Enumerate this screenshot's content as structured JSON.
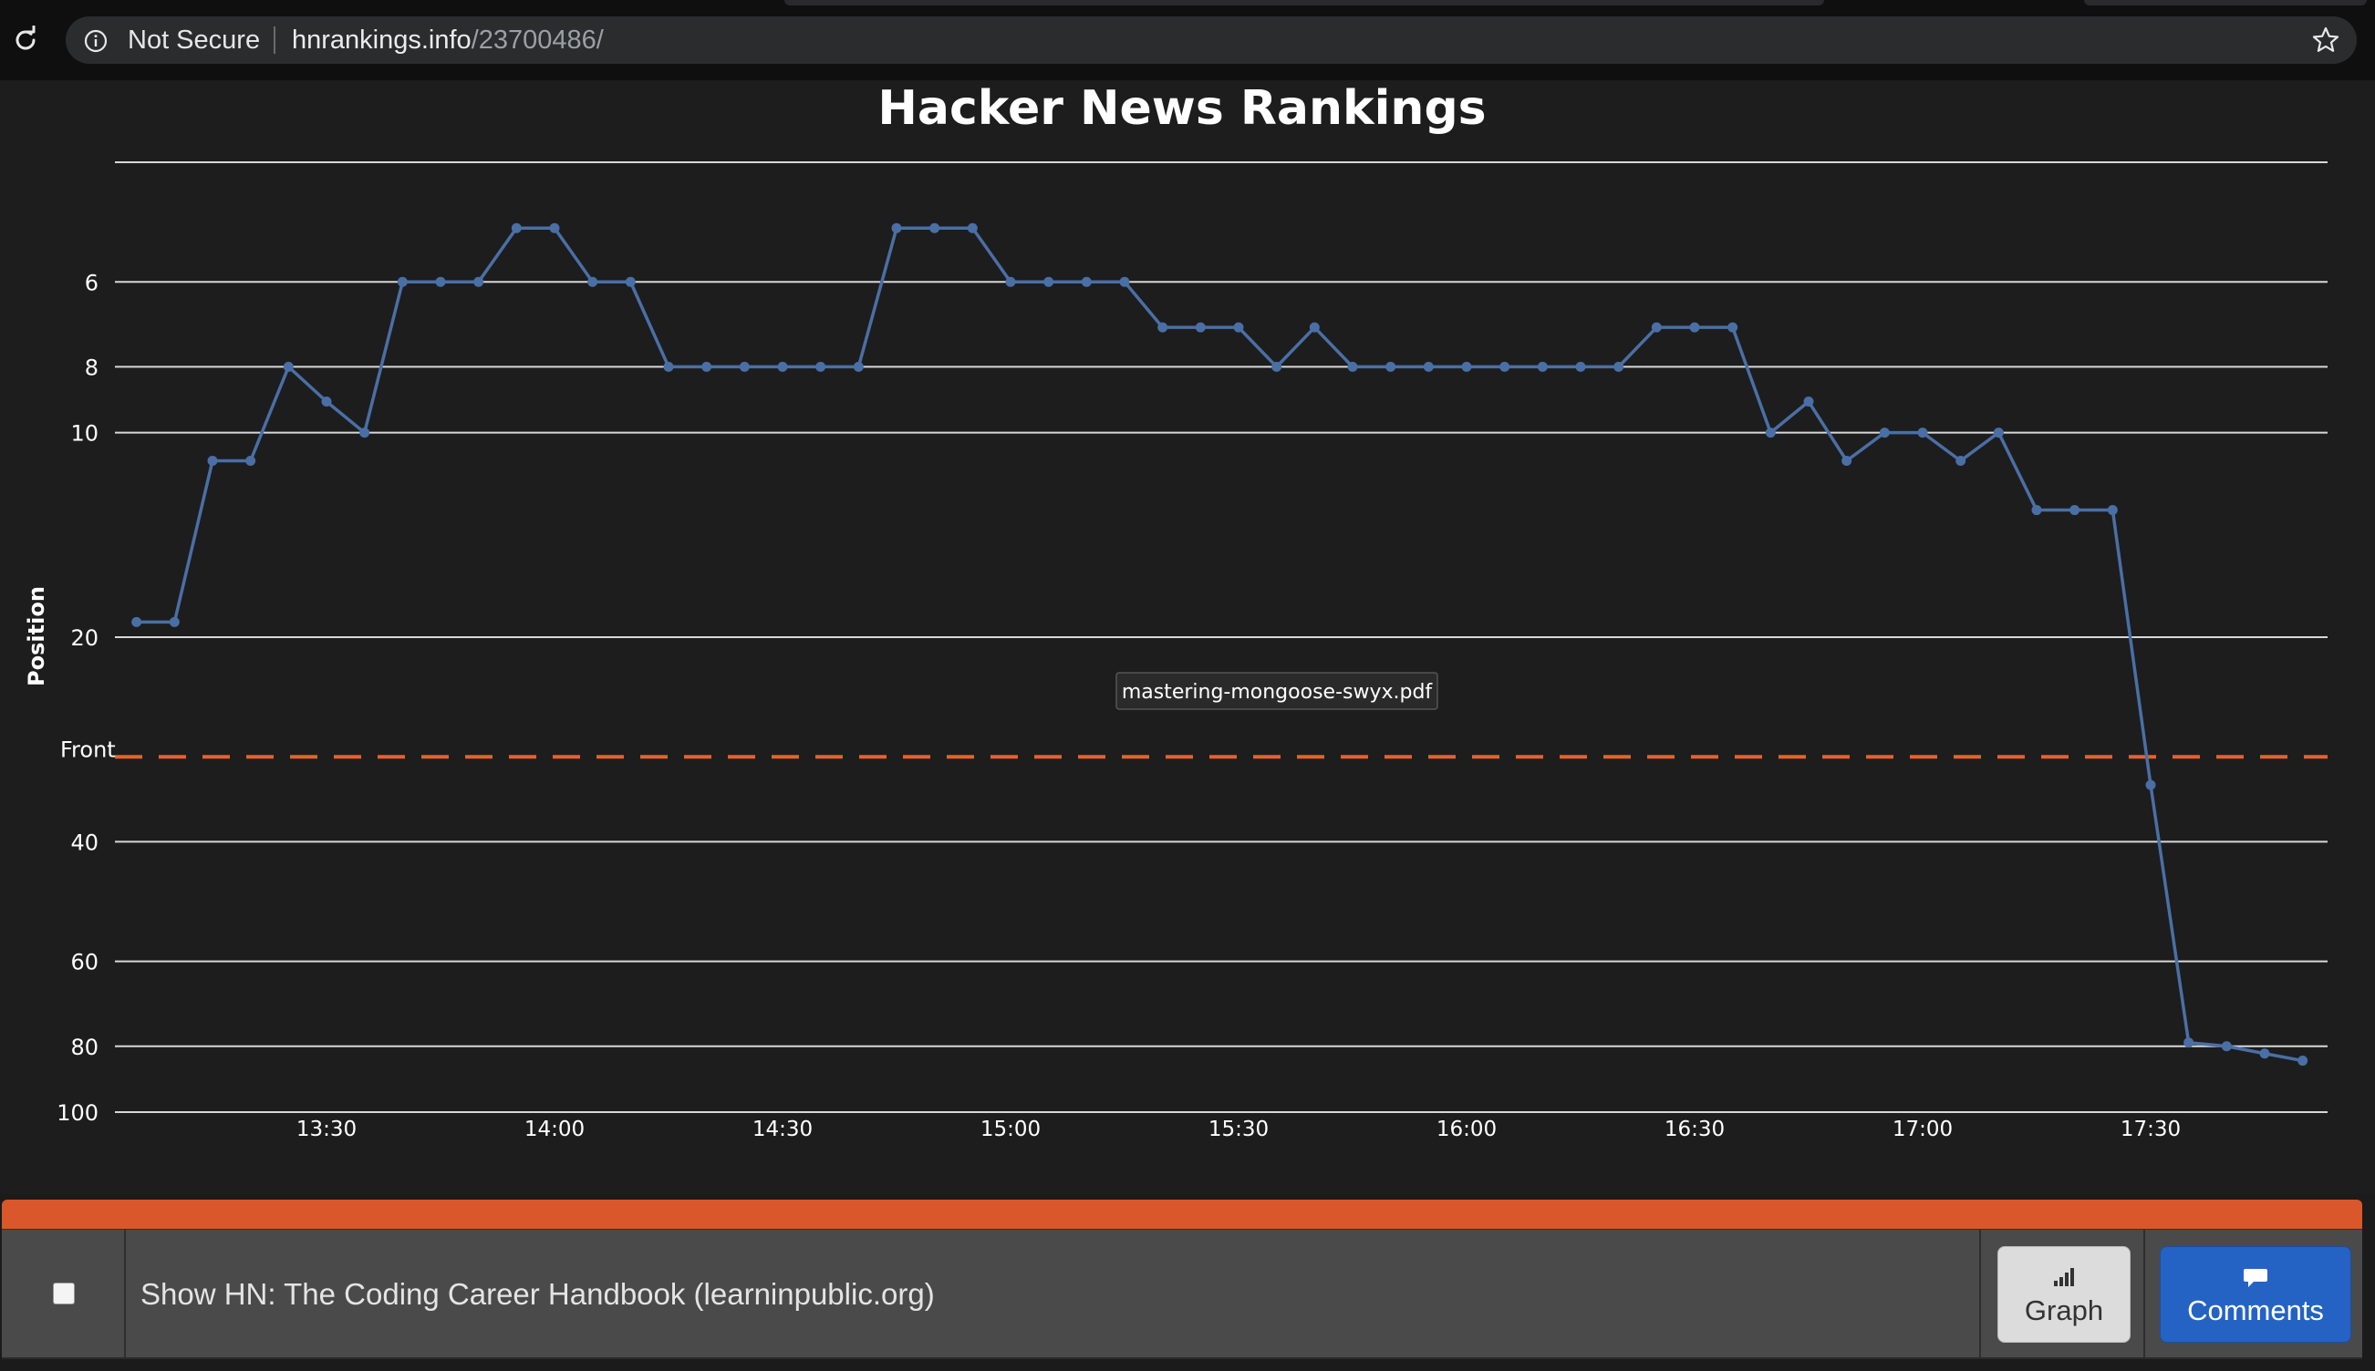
{
  "browser": {
    "security_label": "Not Secure",
    "url_host": "hnrankings.info",
    "url_path": "/23700486/"
  },
  "chart_data": {
    "type": "line",
    "title": "Hacker News Rankings",
    "ylabel": "Position",
    "y_axis": {
      "scale": "log",
      "reversed": true,
      "ticks": [
        6,
        8,
        10,
        20,
        40,
        60,
        80,
        100
      ],
      "top_limit": 4,
      "bottom_limit": 100
    },
    "x_ticks": [
      "13:30",
      "14:00",
      "14:30",
      "15:00",
      "15:30",
      "16:00",
      "16:30",
      "17:00",
      "17:30"
    ],
    "grid": true,
    "reference_line": {
      "label": "Front",
      "value": 30,
      "color": "#e8612c"
    },
    "series": [
      {
        "color": "#4a6fa5",
        "points": [
          [
            "13:05",
            19
          ],
          [
            "13:10",
            19
          ],
          [
            "13:15",
            11
          ],
          [
            "13:20",
            11
          ],
          [
            "13:25",
            8
          ],
          [
            "13:30",
            9
          ],
          [
            "13:35",
            10
          ],
          [
            "13:40",
            6
          ],
          [
            "13:45",
            6
          ],
          [
            "13:50",
            6
          ],
          [
            "13:55",
            5
          ],
          [
            "14:00",
            5
          ],
          [
            "14:05",
            6
          ],
          [
            "14:10",
            6
          ],
          [
            "14:15",
            8
          ],
          [
            "14:20",
            8
          ],
          [
            "14:25",
            8
          ],
          [
            "14:30",
            8
          ],
          [
            "14:35",
            8
          ],
          [
            "14:40",
            8
          ],
          [
            "14:45",
            5
          ],
          [
            "14:50",
            5
          ],
          [
            "14:55",
            5
          ],
          [
            "15:00",
            6
          ],
          [
            "15:05",
            6
          ],
          [
            "15:10",
            6
          ],
          [
            "15:15",
            6
          ],
          [
            "15:20",
            7
          ],
          [
            "15:25",
            7
          ],
          [
            "15:30",
            7
          ],
          [
            "15:35",
            8
          ],
          [
            "15:40",
            7
          ],
          [
            "15:45",
            8
          ],
          [
            "15:50",
            8
          ],
          [
            "15:55",
            8
          ],
          [
            "16:00",
            8
          ],
          [
            "16:05",
            8
          ],
          [
            "16:10",
            8
          ],
          [
            "16:15",
            8
          ],
          [
            "16:20",
            8
          ],
          [
            "16:25",
            7
          ],
          [
            "16:30",
            7
          ],
          [
            "16:35",
            7
          ],
          [
            "16:40",
            10
          ],
          [
            "16:45",
            9
          ],
          [
            "16:50",
            11
          ],
          [
            "16:55",
            10
          ],
          [
            "17:00",
            10
          ],
          [
            "17:05",
            11
          ],
          [
            "17:10",
            10
          ],
          [
            "17:15",
            13
          ],
          [
            "17:20",
            13
          ],
          [
            "17:25",
            13
          ],
          [
            "17:30",
            33
          ],
          [
            "17:35",
            79
          ],
          [
            "17:40",
            80
          ],
          [
            "17:45",
            82
          ],
          [
            "17:50",
            84
          ]
        ]
      }
    ],
    "tooltip_label": "mastering-mongoose-swyx.pdf"
  },
  "story": {
    "title": "Show HN: The Coding Career Handbook (learninpublic.org)",
    "graph_label": "Graph",
    "comments_label": "Comments"
  },
  "icons": {
    "reload": "reload-icon",
    "info": "info-icon",
    "star": "star-icon",
    "graph": "bar-chart-icon",
    "comments": "speech-bubble-icon"
  }
}
